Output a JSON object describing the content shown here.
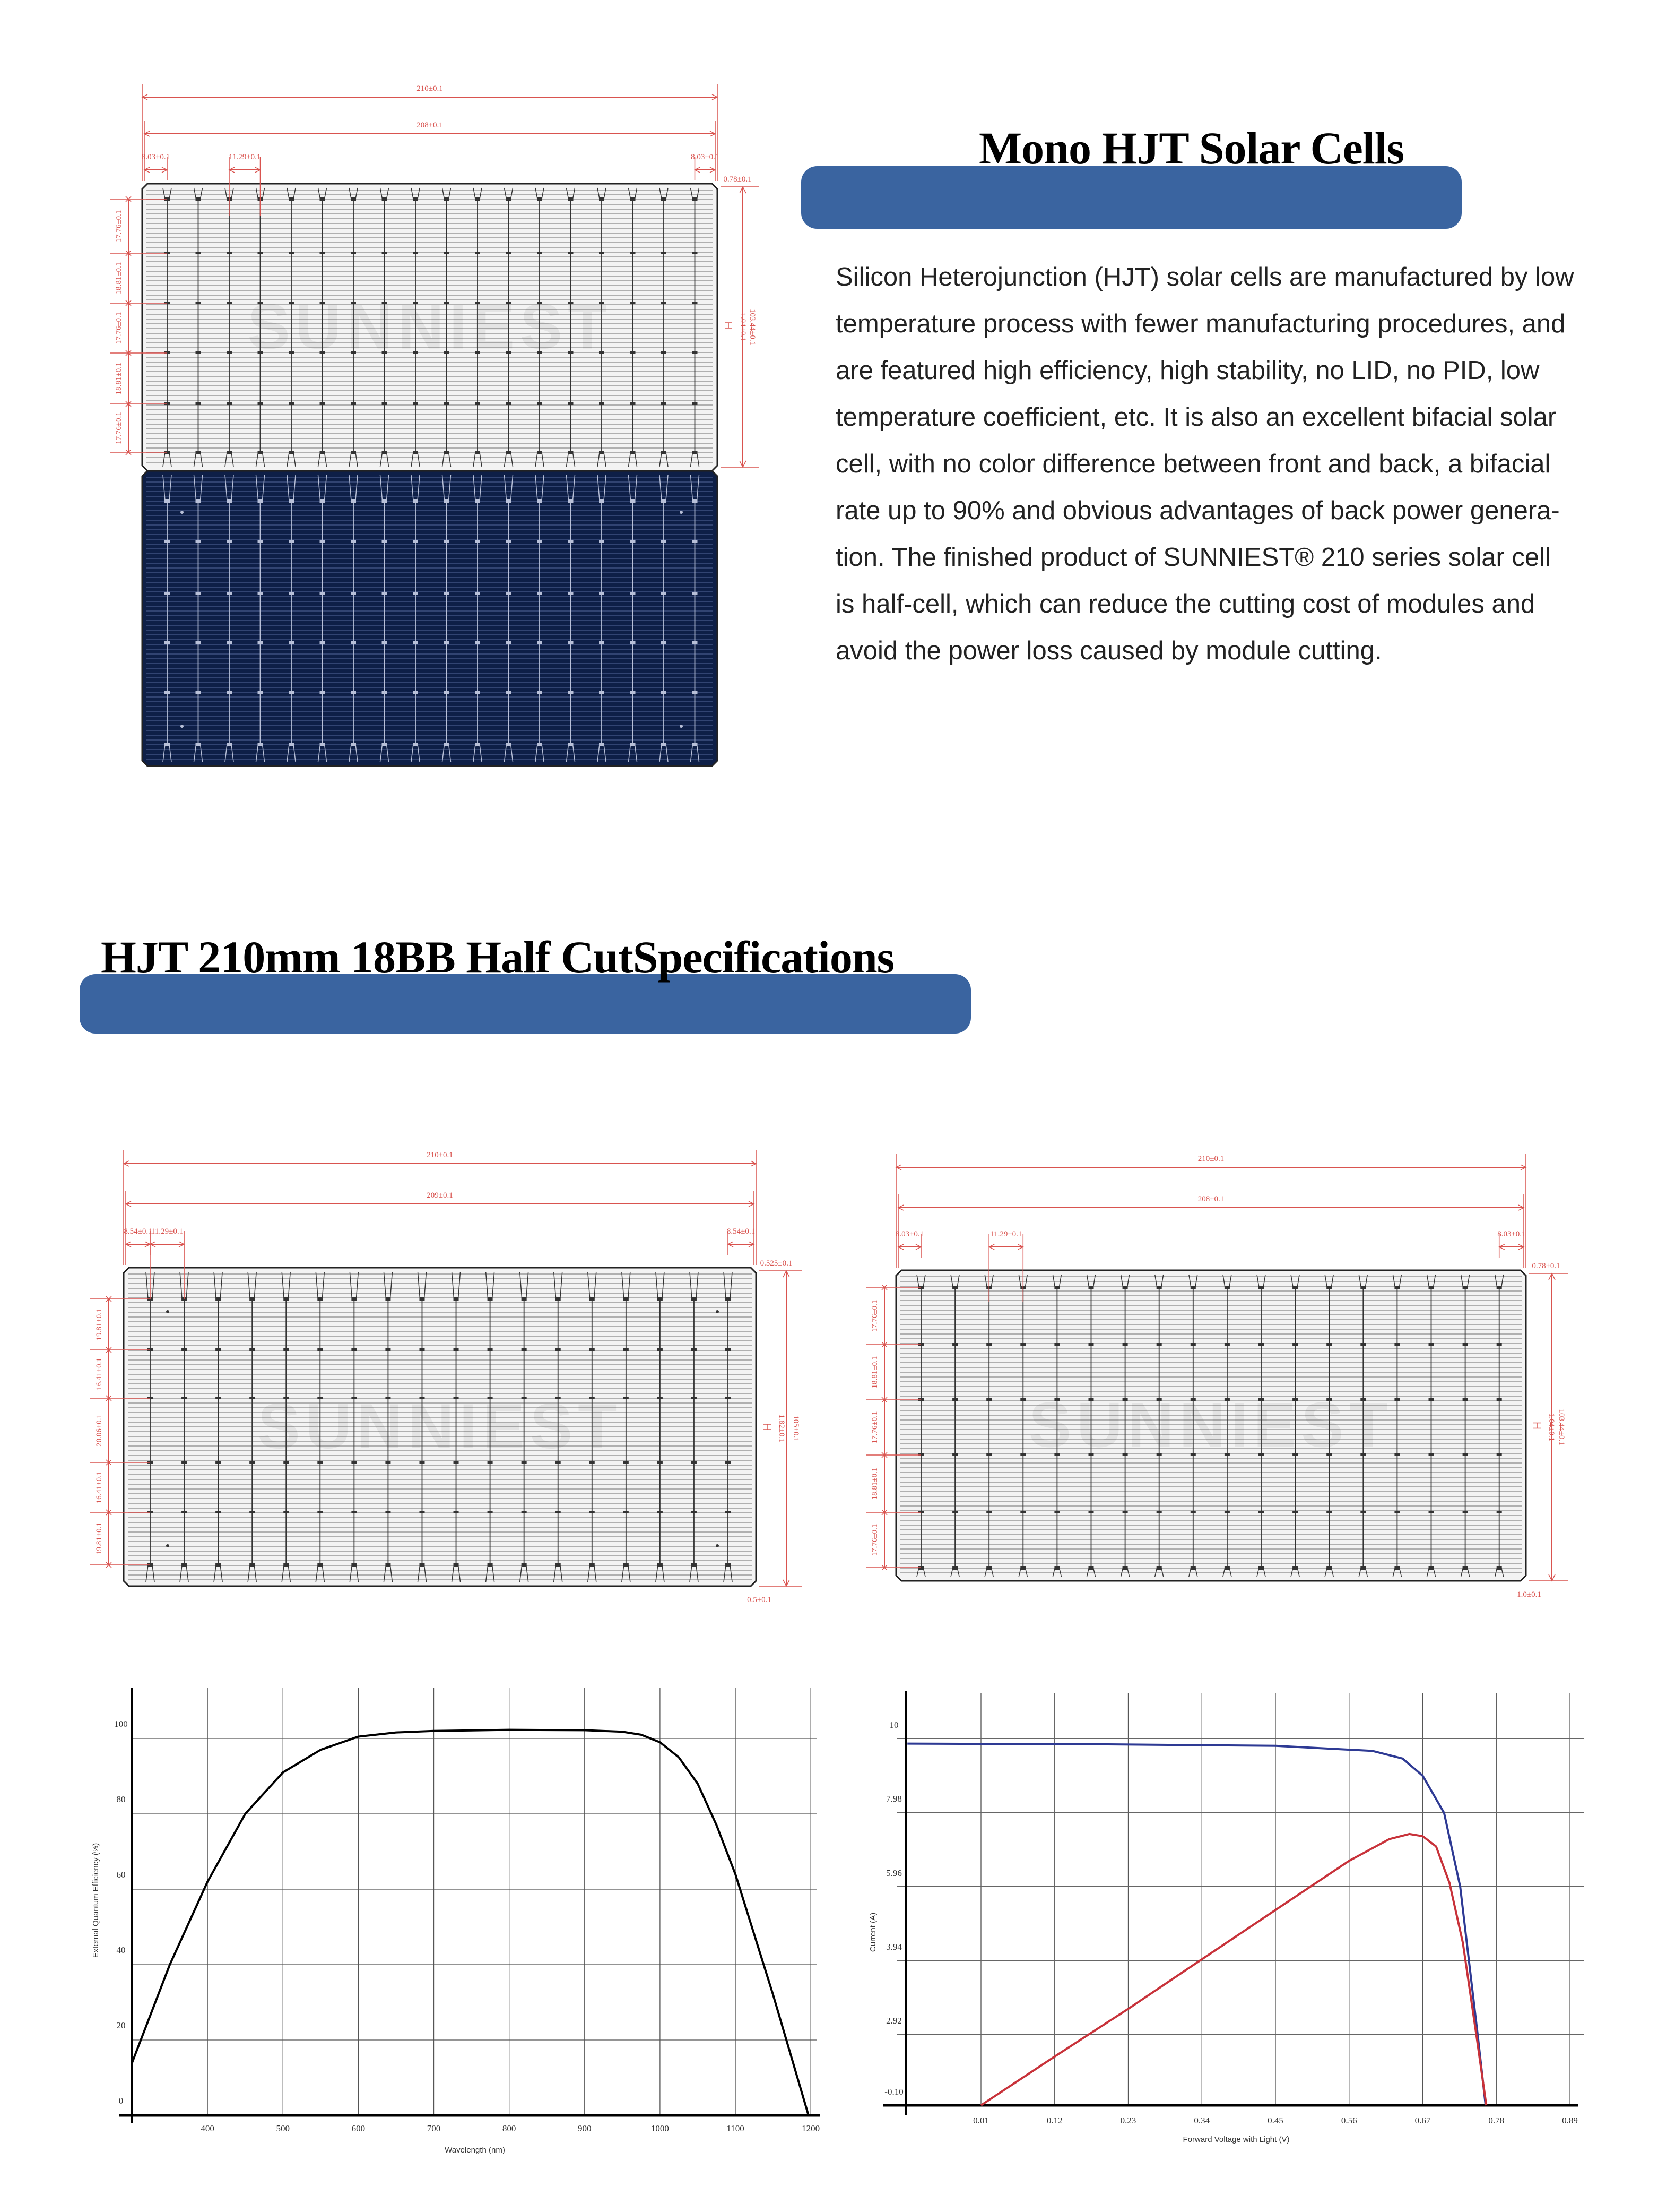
{
  "header": {
    "title": "Mono HJT Solar Cells",
    "description_lines": [
      "Silicon Heterojunction (HJT) solar cells are manufactured by low",
      "temperature process with fewer manufacturing procedures, and",
      "are featured high efficiency, high stability, no LID, no PID, low",
      "temperature coefficient, etc. It is also an excellent bifacial solar",
      "cell, with no color difference between front and back, a bifacial",
      "rate up to 90% and obvious advantages of back power genera-",
      "tion. The finished product of SUNNIEST® 210 series solar cell",
      "is half-cell, which can reduce the cutting cost of modules and",
      "avoid the power loss caused by module cutting."
    ]
  },
  "specs": {
    "title": "HJT 210mm 18BB Half CutSpecifications"
  },
  "watermark": "SUNNIEST",
  "colors": {
    "accent_bar": "#3a64a0",
    "dimension": "#d9534f",
    "cell_back": "#0e1f47",
    "cell_front": "#f3f3f3",
    "iv_curve": "#2e3a94",
    "power_curve": "#c8323a"
  },
  "drawings": {
    "top": {
      "width_total": "210±0.1",
      "width_inner": "208±0.1",
      "edge_left": "8.03±0.1",
      "edge_right": "8.03±0.1",
      "pitch": "11.29±0.1",
      "top_offset": "0.78±0.1",
      "height": "103.44±0.1",
      "gap": "1.04±0.1",
      "row_pitches": [
        "17.76±0.1",
        "18.81±0.1",
        "17.76±0.1",
        "18.81±0.1",
        "17.76±0.1"
      ]
    },
    "left": {
      "width_total": "210±0.1",
      "width_inner": "209±0.1",
      "edge_left": "8.54±0.1",
      "edge_right": "8.54±0.1",
      "pitch": "11.29±0.1",
      "top_offset": "0.525±0.1",
      "height": "105±0.1",
      "gap": "1.82±0.1",
      "bottom_offset": "0.5±0.1",
      "row_pitches": [
        "19.81±0.1",
        "16.41±0.1",
        "20.06±0.1",
        "16.41±0.1",
        "19.81±0.1"
      ]
    },
    "right": {
      "width_total": "210±0.1",
      "width_inner": "208±0.1",
      "edge_left": "8.03±0.1",
      "edge_right": "8.03±0.1",
      "pitch": "11.29±0.1",
      "top_offset": "0.78±0.1",
      "height": "103.44±0.1",
      "gap": "1.04±0.1",
      "bottom_offset": "1.0±0.1",
      "row_pitches": [
        "17.76±0.1",
        "18.81±0.1",
        "17.76±0.1",
        "18.81±0.1",
        "17.76±0.1"
      ]
    }
  },
  "chart_data": [
    {
      "type": "line",
      "title": "",
      "xlabel": "Wavelength (nm)",
      "ylabel": "External Quantum Efficiency (%)",
      "xlim": [
        300,
        1200
      ],
      "ylim": [
        0,
        113
      ],
      "x_ticks": [
        "400",
        "500",
        "600",
        "700",
        "800",
        "900",
        "1000",
        "1100",
        "1200"
      ],
      "y_ticks": [
        "0",
        "20",
        "40",
        "60",
        "80",
        "100"
      ],
      "grid": true,
      "series": [
        {
          "color": "#000000",
          "x": [
            300,
            350,
            400,
            450,
            500,
            550,
            600,
            650,
            700,
            800,
            900,
            950,
            975,
            1000,
            1025,
            1050,
            1075,
            1100,
            1150,
            1197
          ],
          "y": [
            14,
            40,
            62,
            80,
            91,
            97,
            100.5,
            101.6,
            102,
            102.3,
            102.2,
            101.8,
            101,
            99,
            95,
            88,
            77,
            64,
            32,
            0
          ]
        }
      ]
    },
    {
      "type": "line",
      "title": "",
      "xlabel": "Forward Voltage with Light (V)",
      "ylabel": "Current (A)",
      "xlim": [
        -0.1,
        0.9
      ],
      "x_ticks": [
        "0.01",
        "0.12",
        "0.23",
        "0.34",
        "0.45",
        "0.56",
        "0.67",
        "0.78",
        "0.89"
      ],
      "y_ticks": [
        "-0.10",
        "2.92",
        "3.94",
        "5.96",
        "7.98",
        "10"
      ],
      "grid": true,
      "series": [
        {
          "color": "#2e3a94",
          "x": [
            -0.1,
            0.2,
            0.45,
            0.595,
            0.64,
            0.67,
            0.702,
            0.726,
            0.739,
            0.752,
            0.764
          ],
          "y": [
            9.86,
            9.84,
            9.8,
            9.66,
            9.45,
            8.98,
            7.96,
            5.96,
            3.94,
            2.92,
            -0.1
          ]
        },
        {
          "color": "#c8323a",
          "x": [
            0.01,
            0.12,
            0.23,
            0.34,
            0.45,
            0.56,
            0.62,
            0.65,
            0.67,
            0.69,
            0.71,
            0.73,
            0.75,
            0.765
          ],
          "y": [
            -0.1,
            1.97,
            3.27,
            3.97,
            5.32,
            6.66,
            7.25,
            7.39,
            7.33,
            7.05,
            6.06,
            4.42,
            2.92,
            -0.1
          ]
        }
      ]
    }
  ]
}
